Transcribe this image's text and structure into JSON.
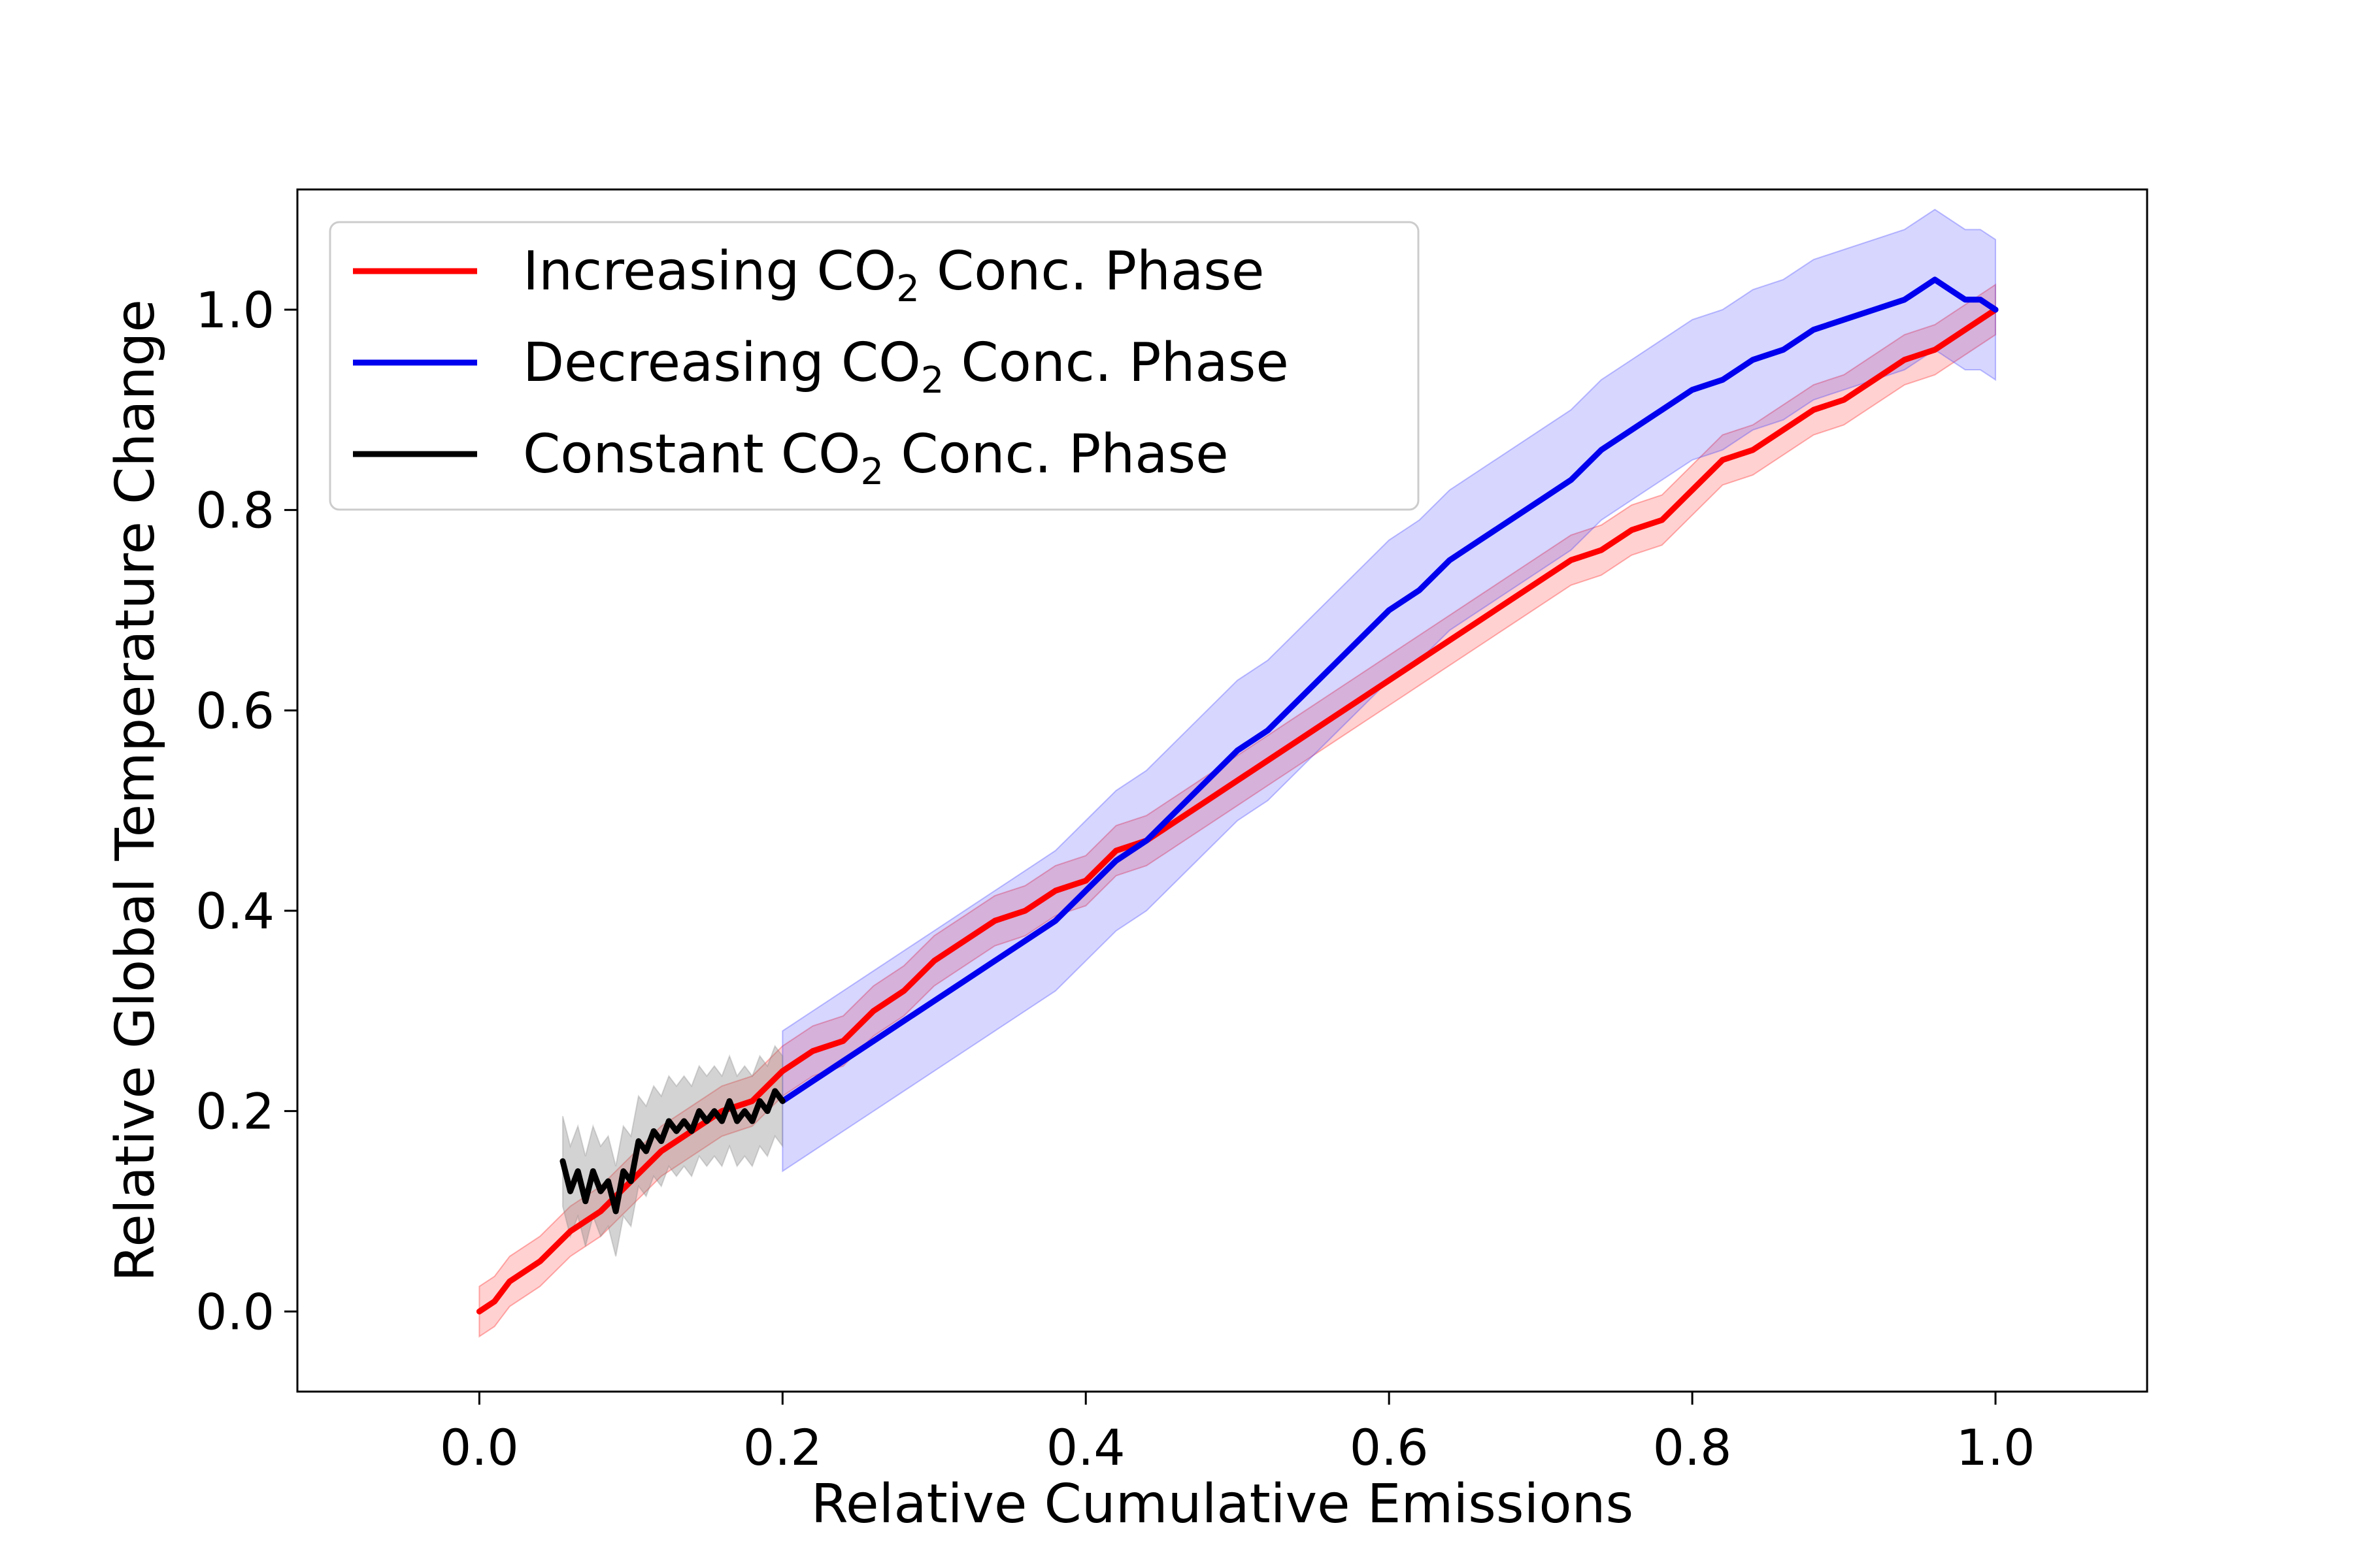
{
  "chart_data": {
    "type": "line",
    "title": "",
    "xlabel": "Relative Cumulative Emissions",
    "ylabel": "Relative Global Temperature Change",
    "xlim": [
      -0.12,
      1.1
    ],
    "ylim": [
      -0.08,
      1.12
    ],
    "xticks": [
      0.0,
      0.2,
      0.4,
      0.6,
      0.8,
      1.0
    ],
    "xtick_labels": [
      "0.0",
      "0.2",
      "0.4",
      "0.6",
      "0.8",
      "1.0"
    ],
    "yticks": [
      0.0,
      0.2,
      0.4,
      0.6,
      0.8,
      1.0
    ],
    "ytick_labels": [
      "0.0",
      "0.2",
      "0.4",
      "0.6",
      "0.8",
      "1.0"
    ],
    "grid": false,
    "legend_position": "upper-left",
    "series": [
      {
        "name": "Increasing CO2 Conc. Phase",
        "legend_main": "Increasing CO",
        "legend_sub": "2",
        "legend_tail": " Conc. Phase",
        "color": "#ff0000",
        "band_color": "#ff0000",
        "band_opacity": 0.18,
        "band_width": 0.025,
        "x": [
          0.0,
          0.01,
          0.02,
          0.04,
          0.06,
          0.08,
          0.1,
          0.12,
          0.14,
          0.16,
          0.18,
          0.2,
          0.22,
          0.24,
          0.26,
          0.28,
          0.3,
          0.32,
          0.34,
          0.36,
          0.38,
          0.4,
          0.42,
          0.44,
          0.46,
          0.48,
          0.5,
          0.52,
          0.54,
          0.56,
          0.58,
          0.6,
          0.62,
          0.64,
          0.66,
          0.68,
          0.7,
          0.72,
          0.74,
          0.76,
          0.78,
          0.8,
          0.82,
          0.84,
          0.86,
          0.88,
          0.9,
          0.92,
          0.94,
          0.96,
          0.98,
          1.0
        ],
        "y": [
          0.0,
          0.01,
          0.03,
          0.05,
          0.08,
          0.1,
          0.13,
          0.16,
          0.18,
          0.2,
          0.21,
          0.24,
          0.26,
          0.27,
          0.3,
          0.32,
          0.35,
          0.37,
          0.39,
          0.4,
          0.42,
          0.43,
          0.46,
          0.47,
          0.49,
          0.51,
          0.53,
          0.55,
          0.57,
          0.59,
          0.61,
          0.63,
          0.65,
          0.67,
          0.69,
          0.71,
          0.73,
          0.75,
          0.76,
          0.78,
          0.79,
          0.82,
          0.85,
          0.86,
          0.88,
          0.9,
          0.91,
          0.93,
          0.95,
          0.96,
          0.98,
          1.0
        ]
      },
      {
        "name": "Decreasing CO2 Conc. Phase",
        "legend_main": "Decreasing CO",
        "legend_sub": "2",
        "legend_tail": " Conc. Phase",
        "color": "#0000ee",
        "band_color": "#3333ff",
        "band_opacity": 0.2,
        "band_width": 0.07,
        "x": [
          0.2,
          0.22,
          0.24,
          0.26,
          0.28,
          0.3,
          0.32,
          0.34,
          0.36,
          0.38,
          0.4,
          0.42,
          0.44,
          0.46,
          0.48,
          0.5,
          0.52,
          0.54,
          0.56,
          0.58,
          0.6,
          0.62,
          0.64,
          0.66,
          0.68,
          0.7,
          0.72,
          0.74,
          0.76,
          0.78,
          0.8,
          0.82,
          0.84,
          0.86,
          0.88,
          0.9,
          0.92,
          0.94,
          0.95,
          0.96,
          0.97,
          0.98,
          0.99,
          1.0
        ],
        "y": [
          0.21,
          0.23,
          0.25,
          0.27,
          0.29,
          0.31,
          0.33,
          0.35,
          0.37,
          0.39,
          0.42,
          0.45,
          0.47,
          0.5,
          0.53,
          0.56,
          0.58,
          0.61,
          0.64,
          0.67,
          0.7,
          0.72,
          0.75,
          0.77,
          0.79,
          0.81,
          0.83,
          0.86,
          0.88,
          0.9,
          0.92,
          0.93,
          0.95,
          0.96,
          0.98,
          0.99,
          1.0,
          1.01,
          1.02,
          1.03,
          1.02,
          1.01,
          1.01,
          1.0
        ]
      },
      {
        "name": "Constant CO2 Conc. Phase",
        "legend_main": "Constant CO",
        "legend_sub": "2",
        "legend_tail": " Conc. Phase",
        "color": "#000000",
        "band_color": "#808080",
        "band_opacity": 0.35,
        "band_width": 0.045,
        "x": [
          0.055,
          0.06,
          0.065,
          0.07,
          0.075,
          0.08,
          0.085,
          0.09,
          0.095,
          0.1,
          0.105,
          0.11,
          0.115,
          0.12,
          0.125,
          0.13,
          0.135,
          0.14,
          0.145,
          0.15,
          0.155,
          0.16,
          0.165,
          0.17,
          0.175,
          0.18,
          0.185,
          0.19,
          0.195,
          0.2
        ],
        "y": [
          0.15,
          0.12,
          0.14,
          0.11,
          0.14,
          0.12,
          0.13,
          0.1,
          0.14,
          0.13,
          0.17,
          0.16,
          0.18,
          0.17,
          0.19,
          0.18,
          0.19,
          0.18,
          0.2,
          0.19,
          0.2,
          0.19,
          0.21,
          0.19,
          0.2,
          0.19,
          0.21,
          0.2,
          0.22,
          0.21
        ]
      }
    ]
  }
}
